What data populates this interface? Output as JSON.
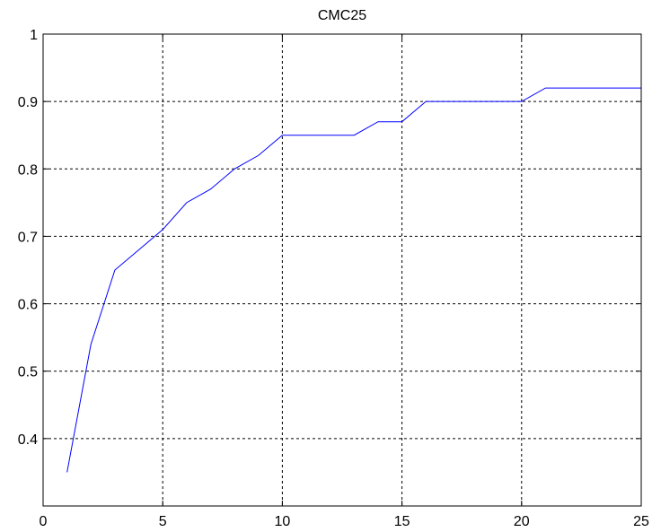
{
  "chart_data": {
    "type": "line",
    "title": "CMC25",
    "xlabel": "",
    "ylabel": "",
    "xlim": [
      0,
      25
    ],
    "ylim": [
      0.3,
      1
    ],
    "xticks": [
      0,
      5,
      10,
      15,
      20,
      25
    ],
    "yticks": [
      0.4,
      0.5,
      0.6,
      0.7,
      0.8,
      0.9,
      1
    ],
    "ytick_labels": [
      "0.4",
      "0.5",
      "0.6",
      "0.7",
      "0.8",
      "0.9",
      "1"
    ],
    "grid": true,
    "line_color": "#0000ff",
    "series": [
      {
        "x": [
          1,
          2,
          3,
          4,
          5,
          6,
          7,
          8,
          9,
          10,
          11,
          12,
          13,
          14,
          15,
          16,
          17,
          18,
          19,
          20,
          21,
          22,
          23,
          24,
          25
        ],
        "values": [
          0.35,
          0.54,
          0.65,
          0.68,
          0.71,
          0.75,
          0.77,
          0.8,
          0.82,
          0.85,
          0.85,
          0.85,
          0.85,
          0.87,
          0.87,
          0.9,
          0.9,
          0.9,
          0.9,
          0.9,
          0.92,
          0.92,
          0.92,
          0.92,
          0.92
        ]
      }
    ]
  }
}
